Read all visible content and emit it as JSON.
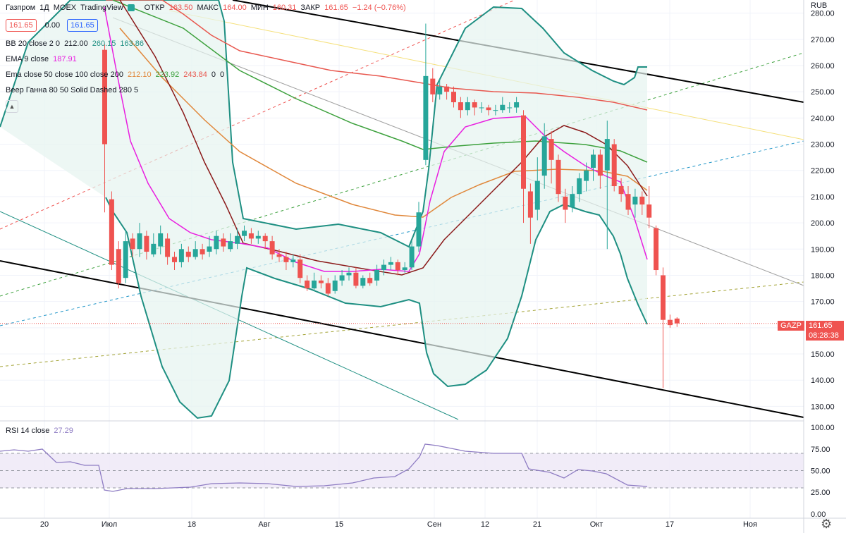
{
  "header": {
    "symbol": "Газпром",
    "interval": "1Д",
    "exchange": "MOEX",
    "source": "TradingView",
    "open_label": "ОТКР",
    "open": "163.50",
    "high_label": "МАКС",
    "high": "164.00",
    "low_label": "МИН",
    "low": "160.31",
    "close_label": "ЗАКР",
    "close": "161.65",
    "change": "−1.24 (−0.76%)",
    "bid": "161.65",
    "spread": "0.00",
    "ask": "161.65",
    "currency": "RUB"
  },
  "indicators": {
    "bb_label": "BB 20 close 2 0",
    "bb_values": [
      "212.00",
      "260.15",
      "163.86"
    ],
    "ema9_label": "EMA 9 close",
    "ema9_value": "187.91",
    "ema_multi_label": "Ema close 50 close 100 close 200",
    "ema_multi_values": [
      "212.10",
      "223.92",
      "243.84",
      "0",
      "0"
    ],
    "gann_label": "Веер Ганна 80 50 Solid Dashed 280 5",
    "rsi_label": "RSI 14 close",
    "rsi_value": "27.29"
  },
  "price_tag": {
    "ticker": "GAZP",
    "price": "161.65",
    "countdown": "08:28:38"
  },
  "colors": {
    "up": "#26a69a",
    "down": "#ef5350",
    "ema9": "#e91ee0",
    "ema50": "#8b1a1a",
    "ema100": "#e0873a",
    "ema200": "#3da13d",
    "ema_red": "#e8584f",
    "bb": "#1e8f82",
    "rsi": "#8e7cc3",
    "channel": "#000000"
  },
  "chart_data": {
    "type": "candlestick",
    "y_axis": {
      "range": [
        125,
        285
      ],
      "ticks": [
        "280.00",
        "270.00",
        "260.00",
        "250.00",
        "240.00",
        "230.00",
        "220.00",
        "210.00",
        "200.00",
        "190.00",
        "180.00",
        "170.00",
        "160.00",
        "150.00",
        "140.00",
        "130.00"
      ]
    },
    "x_ticks": [
      "20",
      "Июл",
      "18",
      "Авг",
      "15",
      "Сен",
      "12",
      "21",
      "Окт",
      "17",
      "Ноя"
    ],
    "candles": [
      [
        266,
        230,
        268,
        204
      ],
      [
        209,
        184,
        212,
        182
      ],
      [
        190,
        177,
        193,
        175
      ],
      [
        179,
        193,
        197,
        177
      ],
      [
        194,
        190,
        196,
        187
      ],
      [
        190,
        196,
        200,
        187
      ],
      [
        195,
        189,
        197,
        186
      ],
      [
        188,
        192,
        196,
        187
      ],
      [
        191,
        196,
        199,
        188
      ],
      [
        194,
        187,
        196,
        184
      ],
      [
        187,
        185,
        189,
        182
      ],
      [
        185,
        190,
        192,
        183
      ],
      [
        189,
        187,
        191,
        185
      ],
      [
        187,
        190,
        193,
        186
      ],
      [
        190,
        188,
        192,
        186
      ],
      [
        189,
        191,
        195,
        187
      ],
      [
        190,
        195,
        197,
        188
      ],
      [
        194,
        191,
        196,
        189
      ],
      [
        190,
        193,
        196,
        189
      ],
      [
        192,
        195,
        198,
        190
      ],
      [
        195,
        197,
        199,
        193
      ],
      [
        196,
        194,
        198,
        192
      ],
      [
        194,
        195,
        197,
        192
      ],
      [
        195,
        193,
        196,
        190
      ],
      [
        193,
        188,
        195,
        186
      ],
      [
        188,
        187,
        190,
        185
      ],
      [
        187,
        185,
        189,
        182
      ],
      [
        185,
        186,
        188,
        183
      ],
      [
        186,
        179,
        188,
        177
      ],
      [
        178,
        175,
        180,
        174
      ],
      [
        175,
        178,
        181,
        174
      ],
      [
        178,
        177,
        180,
        175
      ],
      [
        177,
        173,
        179,
        172
      ],
      [
        174,
        178,
        180,
        173
      ],
      [
        178,
        180,
        182,
        176
      ],
      [
        180,
        181,
        183,
        178
      ],
      [
        181,
        176,
        183,
        175
      ],
      [
        176,
        179,
        180,
        175
      ],
      [
        179,
        177,
        181,
        176
      ],
      [
        178,
        182,
        184,
        176
      ],
      [
        182,
        184,
        186,
        180
      ],
      [
        184,
        185,
        187,
        182
      ],
      [
        185,
        182,
        186,
        180
      ],
      [
        182,
        183,
        185,
        181
      ],
      [
        183,
        191,
        193,
        182
      ],
      [
        191,
        204,
        208,
        189
      ],
      [
        224,
        256,
        276,
        222
      ],
      [
        255,
        249,
        259,
        246
      ],
      [
        249,
        252,
        255,
        247
      ],
      [
        252,
        250,
        253,
        247
      ],
      [
        250,
        246,
        252,
        244
      ],
      [
        246,
        243,
        248,
        240
      ],
      [
        243,
        246,
        248,
        241
      ],
      [
        246,
        244,
        247,
        241
      ],
      [
        244,
        244,
        246,
        242
      ],
      [
        244,
        243,
        245,
        241
      ],
      [
        243,
        243,
        245,
        241
      ],
      [
        243,
        245,
        248,
        242
      ],
      [
        244,
        244,
        246,
        242
      ],
      [
        244,
        246,
        248,
        242
      ],
      [
        241,
        213,
        243,
        200
      ],
      [
        212,
        202,
        215,
        192
      ],
      [
        205,
        216,
        225,
        201
      ],
      [
        218,
        233,
        238,
        213
      ],
      [
        232,
        224,
        235,
        215
      ],
      [
        224,
        211,
        226,
        208
      ],
      [
        210,
        205,
        213,
        200
      ],
      [
        206,
        211,
        214,
        204
      ],
      [
        211,
        217,
        219,
        208
      ],
      [
        216,
        220,
        223,
        212
      ],
      [
        221,
        226,
        228,
        216
      ],
      [
        226,
        218,
        228,
        213
      ],
      [
        220,
        232,
        239,
        190
      ],
      [
        230,
        214,
        232,
        212
      ],
      [
        214,
        211,
        217,
        208
      ],
      [
        211,
        205,
        214,
        203
      ],
      [
        207,
        210,
        213,
        202
      ],
      [
        210,
        207,
        212,
        203
      ],
      [
        207,
        202,
        214,
        198
      ],
      [
        198,
        182,
        199,
        180
      ],
      [
        180,
        163,
        183,
        137
      ],
      [
        163,
        161,
        165,
        160
      ],
      [
        163.5,
        161.65,
        164,
        160.31
      ]
    ],
    "bb": {
      "upper_last": 260.15,
      "basis_last": 212.0,
      "lower_last": 163.86
    },
    "ema9_last": 187.91,
    "ema50_last": 212.1,
    "ema100_last": 223.92,
    "ema200_last": 243.84,
    "rsi": {
      "range": [
        -5,
        105
      ],
      "ticks": [
        "100.00",
        "75.00",
        "50.00",
        "25.00",
        "0.00"
      ],
      "band": [
        30,
        70
      ],
      "last": 27.29
    }
  }
}
